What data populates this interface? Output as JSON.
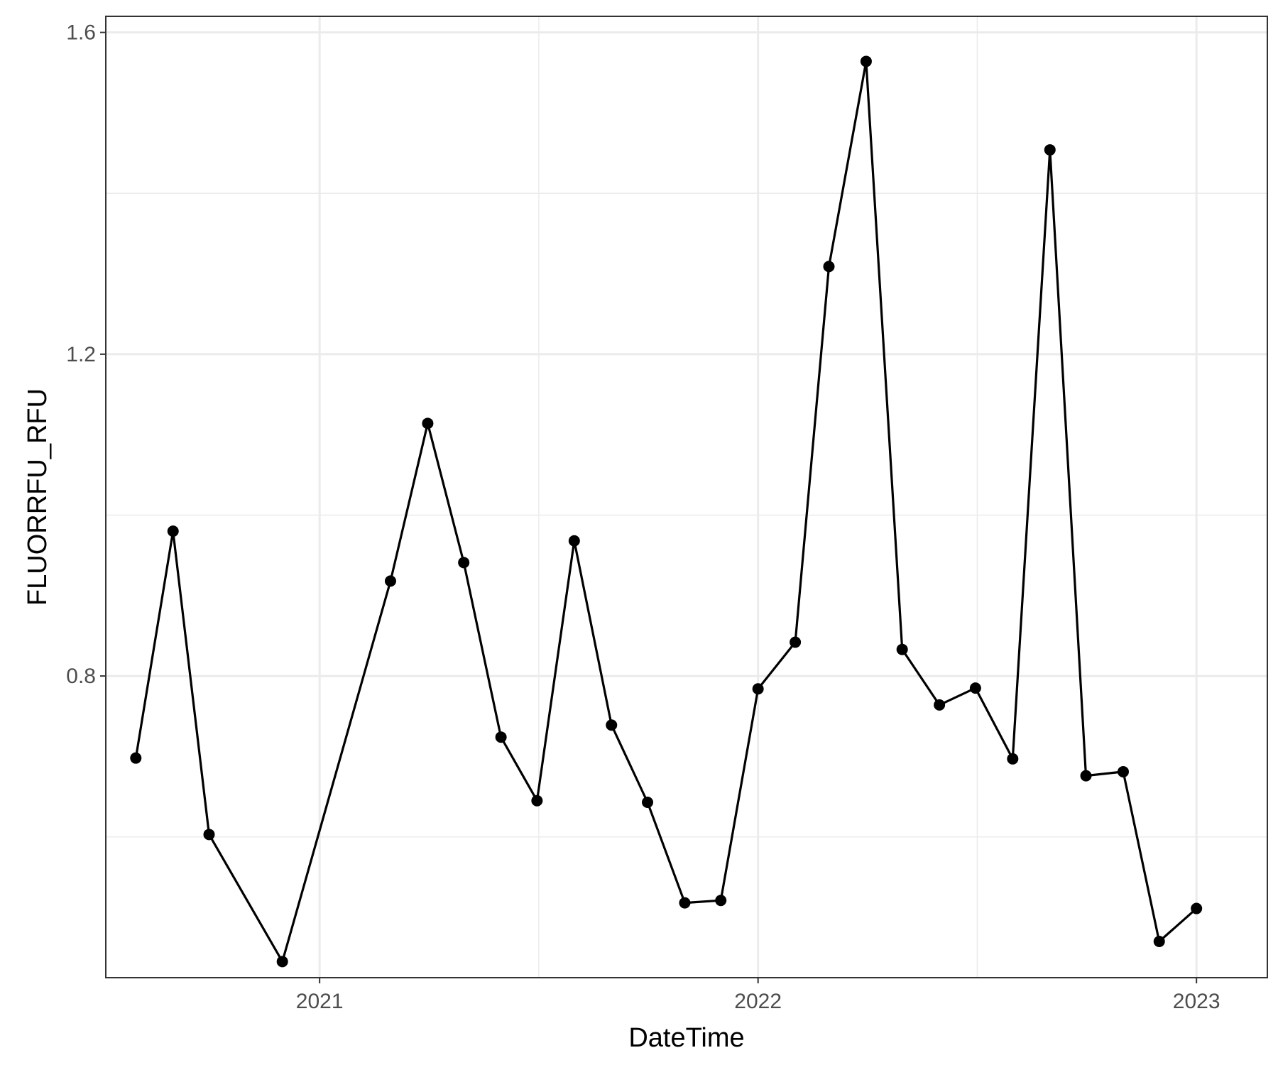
{
  "chart_data": {
    "type": "line",
    "xlabel": "DateTime",
    "ylabel": "FLUORRFU_RFU",
    "x_tick_labels": [
      "2021",
      "2022",
      "2023"
    ],
    "x_ticks": [
      "2021-01-01",
      "2022-01-01",
      "2023-01-01"
    ],
    "y_tick_labels": [
      "0.8",
      "1.2",
      "1.6"
    ],
    "y_ticks": [
      0.8,
      1.2,
      1.6
    ],
    "xlim": [
      "2020-07-07",
      "2023-03-01"
    ],
    "ylim": [
      0.425,
      1.62
    ],
    "grid": true,
    "markers": true,
    "series": [
      {
        "x": [
          "2020-08-01",
          "2020-09-01",
          "2020-10-01",
          "2020-12-01",
          "2021-03-01",
          "2021-04-01",
          "2021-05-01",
          "2021-06-01",
          "2021-07-01",
          "2021-08-01",
          "2021-09-01",
          "2021-10-01",
          "2021-11-01",
          "2021-12-01",
          "2022-01-01",
          "2022-02-01",
          "2022-03-01",
          "2022-04-01",
          "2022-05-01",
          "2022-06-01",
          "2022-07-01",
          "2022-08-01",
          "2022-09-01",
          "2022-10-01",
          "2022-11-01",
          "2022-12-01",
          "2023-01-01"
        ],
        "y": [
          0.698,
          0.98,
          0.603,
          0.445,
          0.918,
          1.114,
          0.941,
          0.724,
          0.645,
          0.968,
          0.739,
          0.643,
          0.518,
          0.521,
          0.784,
          0.842,
          1.309,
          1.564,
          0.833,
          0.764,
          0.785,
          0.697,
          1.454,
          0.676,
          0.681,
          0.47,
          0.511
        ]
      }
    ]
  }
}
